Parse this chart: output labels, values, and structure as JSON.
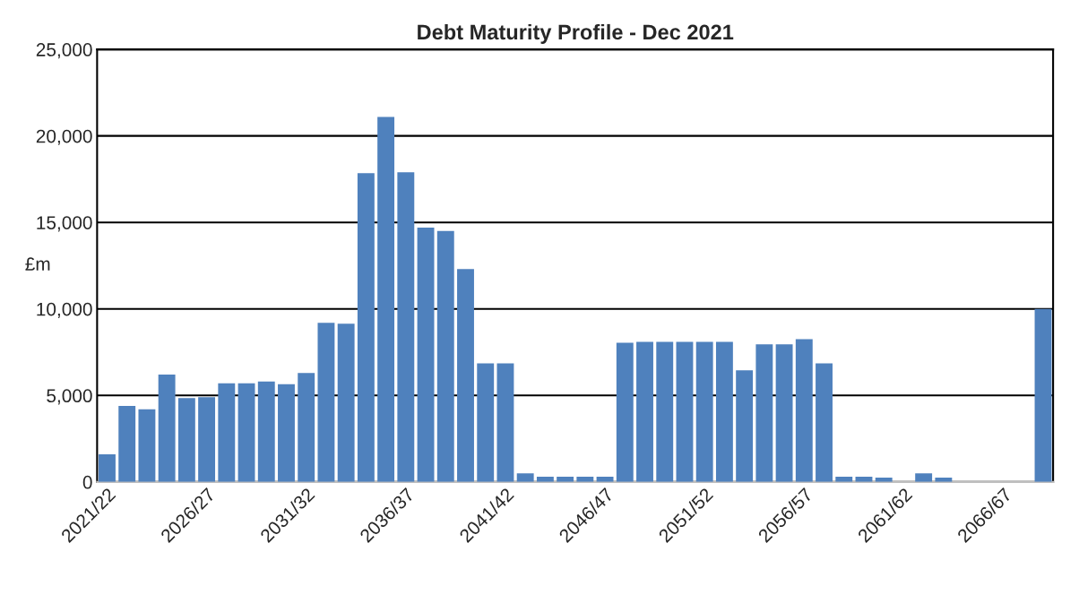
{
  "chart_data": {
    "type": "bar",
    "title": "Debt Maturity Profile - Dec 2021",
    "ylabel": "£m",
    "categories": [
      "2021/22",
      null,
      null,
      null,
      null,
      "2026/27",
      null,
      null,
      null,
      null,
      "2031/32",
      null,
      null,
      null,
      null,
      "2036/37",
      null,
      null,
      null,
      null,
      "2041/42",
      null,
      null,
      null,
      null,
      "2046/47",
      null,
      null,
      null,
      null,
      "2051/52",
      null,
      null,
      null,
      null,
      "2056/57",
      null,
      null,
      null,
      null,
      "2061/62",
      null,
      null,
      null,
      null,
      "2066/67",
      null,
      null
    ],
    "values": [
      1600,
      4400,
      4200,
      6200,
      4850,
      4900,
      5700,
      5700,
      5800,
      5650,
      6300,
      9200,
      9150,
      17850,
      21100,
      17900,
      14700,
      14500,
      12300,
      6850,
      6850,
      500,
      300,
      300,
      300,
      300,
      8050,
      8100,
      8100,
      8100,
      8100,
      8100,
      6450,
      7950,
      7950,
      8250,
      6850,
      300,
      300,
      250,
      0,
      500,
      250,
      0,
      0,
      0,
      0,
      10000
    ],
    "color": "#4f81bd",
    "ylim": [
      0,
      25000
    ],
    "yticks": [
      0,
      {
        "value": 5000,
        "label": "5,000"
      },
      {
        "value": 10000,
        "label": "10,000"
      },
      {
        "value": 15000,
        "label": "15,000"
      },
      {
        "value": 20000,
        "label": "20,000"
      },
      {
        "value": 25000,
        "label": "25,000"
      }
    ],
    "grid": "y",
    "legend": false
  }
}
